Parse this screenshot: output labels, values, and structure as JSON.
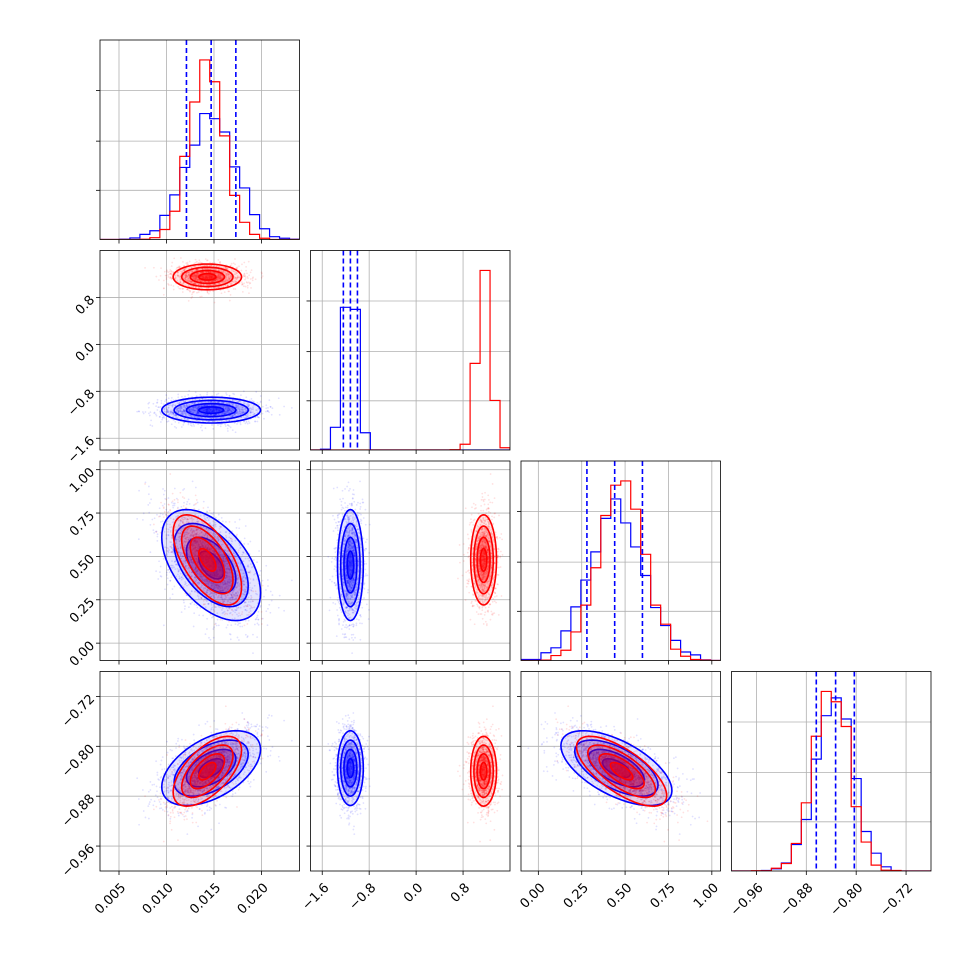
{
  "chart_data": {
    "type": "corner",
    "n_params": 4,
    "grid": true,
    "colors": {
      "sample_a": "#0000ff",
      "sample_b": "#ff0000"
    },
    "params": [
      {
        "range": [
          0.003,
          0.024
        ],
        "ticks": [
          0.005,
          0.01,
          0.015,
          0.02
        ],
        "tick_labels": [
          "0.005",
          "0.010",
          "0.015",
          "0.020"
        ]
      },
      {
        "range": [
          -1.8,
          1.6
        ],
        "ticks": [
          -1.6,
          -0.8,
          0.0,
          0.8
        ],
        "tick_labels": [
          "−1.6",
          "−0.8",
          "0.0",
          "0.8"
        ]
      },
      {
        "range": [
          -0.1,
          1.05
        ],
        "ticks": [
          0.0,
          0.25,
          0.5,
          0.75,
          1.0
        ],
        "tick_labels": [
          "0.00",
          "0.25",
          "0.50",
          "0.75",
          "1.00"
        ]
      },
      {
        "range": [
          -1.0,
          -0.68
        ],
        "ticks": [
          -0.96,
          -0.88,
          -0.8,
          -0.72
        ],
        "tick_labels": [
          "−0.96",
          "−0.88",
          "−0.80",
          "−0.72"
        ]
      }
    ],
    "samples": [
      {
        "color": "#0000ff",
        "mean": [
          0.0147,
          -1.12,
          0.45,
          -0.835
        ],
        "sigma": [
          0.0026,
          0.11,
          0.16,
          0.03
        ],
        "correlations": [
          [
            0,
            2,
            -0.5
          ],
          [
            0,
            3,
            0.5
          ],
          [
            2,
            3,
            -0.6
          ]
        ],
        "quantiles_16_50_84": [
          [
            0.0121,
            0.0147,
            0.0173
          ],
          [
            -1.24,
            -1.12,
            -1.0
          ],
          [
            0.28,
            0.44,
            0.6
          ],
          [
            -0.864,
            -0.833,
            -0.803
          ]
        ]
      },
      {
        "color": "#ff0000",
        "mean": [
          0.0143,
          1.15,
          0.48,
          -0.84
        ],
        "sigma": [
          0.0018,
          0.11,
          0.13,
          0.028
        ],
        "correlations": [
          [
            0,
            2,
            -0.6
          ],
          [
            0,
            3,
            0.6
          ],
          [
            2,
            3,
            -0.7
          ]
        ]
      }
    ]
  }
}
